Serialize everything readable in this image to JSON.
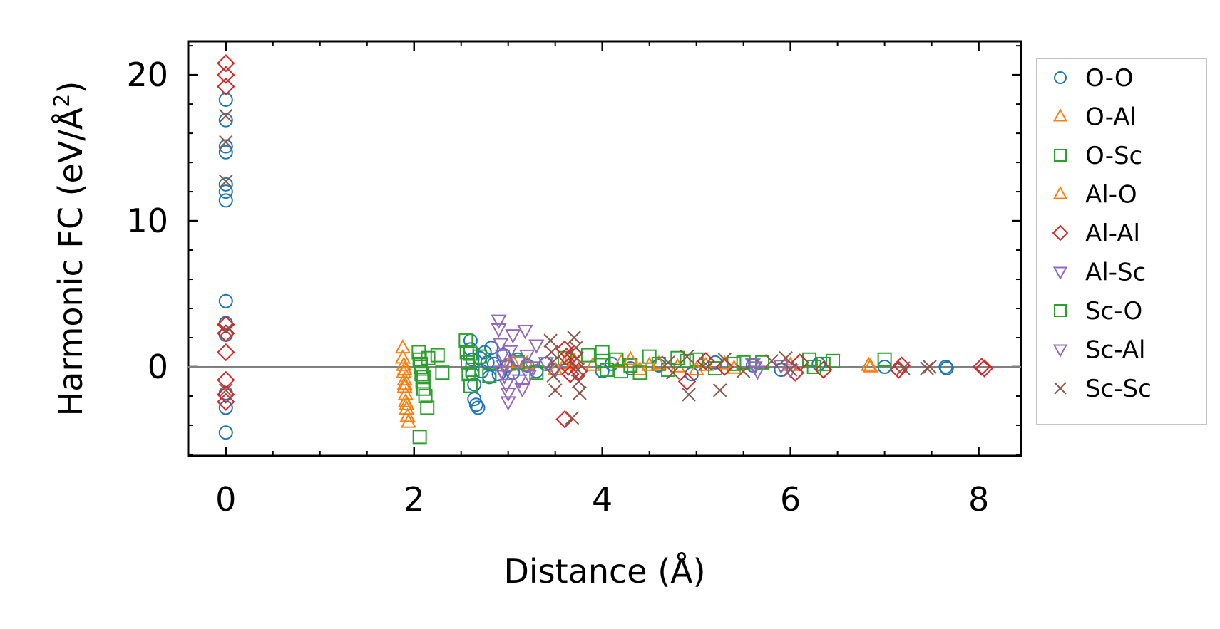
{
  "chart_data": {
    "type": "scatter",
    "title": "",
    "xlabel": "Distance (Å)",
    "ylabel_main": "Harmonic FC (eV/Å",
    "ylabel_sup": "2",
    "ylabel_close": ")",
    "xlim": [
      -0.4,
      8.45
    ],
    "ylim": [
      -6.1,
      22.3
    ],
    "xticks": [
      0,
      2,
      4,
      6,
      8
    ],
    "xtick_labels": [
      "0",
      "2",
      "4",
      "6",
      "8"
    ],
    "yticks": [
      0,
      10,
      20
    ],
    "ytick_labels": [
      "0",
      "10",
      "20"
    ],
    "x_minor_step": 0.5,
    "y_minor_step": 2,
    "reference_line_y": 0,
    "grid": false,
    "legend_position": "right-outside",
    "series": [
      {
        "name": "O-O",
        "marker": "circle",
        "color": "#1f77b4",
        "points": [
          [
            0,
            18.3
          ],
          [
            0,
            16.9
          ],
          [
            0,
            15.1
          ],
          [
            0,
            14.7
          ],
          [
            0,
            12.5
          ],
          [
            0,
            12.0
          ],
          [
            0,
            11.4
          ],
          [
            0,
            4.5
          ],
          [
            0,
            3.0
          ],
          [
            0,
            2.2
          ],
          [
            0,
            -1.8
          ],
          [
            0,
            -2.8
          ],
          [
            0,
            -4.5
          ],
          [
            2.6,
            1.8
          ],
          [
            2.6,
            1.2
          ],
          [
            2.62,
            0.5
          ],
          [
            2.62,
            -0.5
          ],
          [
            2.64,
            -1.2
          ],
          [
            2.64,
            -2.2
          ],
          [
            2.66,
            -2.6
          ],
          [
            2.68,
            -2.8
          ],
          [
            2.7,
            0.6
          ],
          [
            2.72,
            -0.3
          ],
          [
            2.75,
            1.0
          ],
          [
            2.78,
            0.3
          ],
          [
            2.8,
            -0.7
          ],
          [
            2.82,
            1.3
          ],
          [
            2.85,
            0.2
          ],
          [
            2.9,
            -0.5
          ],
          [
            2.95,
            0.8
          ],
          [
            3.0,
            0.1
          ],
          [
            3.05,
            -0.4
          ],
          [
            3.1,
            0.5
          ],
          [
            3.2,
            0.1
          ],
          [
            3.3,
            -0.3
          ],
          [
            3.4,
            0.2
          ],
          [
            4.0,
            -0.3
          ],
          [
            4.1,
            0.2
          ],
          [
            4.3,
            -0.1
          ],
          [
            4.6,
            0.1
          ],
          [
            4.95,
            -0.5
          ],
          [
            5.2,
            0.3
          ],
          [
            5.6,
            0.1
          ],
          [
            5.9,
            -0.2
          ],
          [
            6.3,
            0.2
          ],
          [
            7.0,
            0.0
          ],
          [
            7.65,
            0.0
          ],
          [
            7.66,
            -0.1
          ]
        ]
      },
      {
        "name": "O-Al",
        "marker": "triangle",
        "color": "#ff7f0e",
        "points": [
          [
            1.88,
            1.3
          ],
          [
            1.88,
            0.6
          ],
          [
            1.89,
            0.1
          ],
          [
            1.89,
            -0.4
          ],
          [
            1.9,
            -0.9
          ],
          [
            1.9,
            -1.4
          ],
          [
            1.91,
            -1.9
          ],
          [
            1.91,
            -2.4
          ],
          [
            1.92,
            -2.9
          ],
          [
            1.93,
            -3.4
          ],
          [
            1.94,
            -3.8
          ],
          [
            3.0,
            0.1
          ],
          [
            3.2,
            0.2
          ],
          [
            3.5,
            -0.2
          ],
          [
            3.7,
            0.4
          ],
          [
            3.9,
            0.1
          ],
          [
            4.2,
            0.3
          ],
          [
            4.4,
            -0.2
          ],
          [
            4.6,
            0.2
          ],
          [
            4.8,
            0.0
          ],
          [
            5.1,
            0.1
          ],
          [
            5.4,
            -0.1
          ],
          [
            6.0,
            0.1
          ],
          [
            6.85,
            0.0
          ]
        ]
      },
      {
        "name": "O-Sc",
        "marker": "square",
        "color": "#2ca02c",
        "points": [
          [
            2.05,
            1.0
          ],
          [
            2.06,
            0.5
          ],
          [
            2.07,
            0.0
          ],
          [
            2.08,
            -0.5
          ],
          [
            2.09,
            -1.0
          ],
          [
            2.1,
            -1.5
          ],
          [
            2.12,
            -2.0
          ],
          [
            2.14,
            -2.8
          ],
          [
            2.06,
            -4.8
          ],
          [
            2.15,
            0.6
          ],
          [
            2.25,
            0.8
          ],
          [
            2.3,
            -0.4
          ],
          [
            2.55,
            1.8
          ],
          [
            2.56,
            1.0
          ],
          [
            2.57,
            0.3
          ],
          [
            2.58,
            -0.5
          ],
          [
            2.6,
            -1.3
          ],
          [
            2.7,
            0.7
          ],
          [
            2.8,
            -0.6
          ],
          [
            3.1,
            0.3
          ],
          [
            3.3,
            -0.4
          ],
          [
            3.6,
            0.6
          ],
          [
            3.85,
            0.8
          ],
          [
            4.0,
            1.0
          ],
          [
            4.05,
            -0.2
          ],
          [
            4.15,
            0.5
          ],
          [
            4.3,
            0.1
          ],
          [
            4.4,
            -0.4
          ],
          [
            4.5,
            0.7
          ],
          [
            4.6,
            0.2
          ],
          [
            4.7,
            -0.2
          ],
          [
            4.9,
            0.4
          ],
          [
            5.0,
            0.5
          ],
          [
            5.2,
            -0.1
          ],
          [
            5.4,
            0.2
          ],
          [
            5.7,
            0.3
          ],
          [
            6.2,
            0.5
          ],
          [
            6.35,
            0.2
          ],
          [
            6.45,
            0.4
          ],
          [
            7.0,
            0.5
          ]
        ]
      },
      {
        "name": "Al-O",
        "marker": "triangle",
        "color": "#ff7f0e",
        "points": [
          [
            1.9,
            -0.2
          ],
          [
            1.9,
            -1.2
          ],
          [
            1.92,
            -2.6
          ],
          [
            3.05,
            0.3
          ],
          [
            3.6,
            0.2
          ],
          [
            4.3,
            0.5
          ],
          [
            4.5,
            0.1
          ],
          [
            5.0,
            -0.2
          ],
          [
            5.3,
            0.2
          ],
          [
            6.83,
            0.1
          ]
        ]
      },
      {
        "name": "Al-Al",
        "marker": "diamond",
        "color": "#d62728",
        "points": [
          [
            0,
            20.8
          ],
          [
            0,
            20.0
          ],
          [
            0,
            19.2
          ],
          [
            0,
            2.9
          ],
          [
            0,
            2.3
          ],
          [
            0,
            1.0
          ],
          [
            0,
            -0.9
          ],
          [
            0,
            -1.9
          ],
          [
            0,
            -2.4
          ],
          [
            3.6,
            1.2
          ],
          [
            3.62,
            0.7
          ],
          [
            3.64,
            0.0
          ],
          [
            3.66,
            -0.5
          ],
          [
            3.6,
            -3.6
          ],
          [
            3.7,
            0.9
          ],
          [
            3.75,
            -0.3
          ],
          [
            4.9,
            -1.0
          ],
          [
            5.1,
            0.4
          ],
          [
            5.3,
            0.0
          ],
          [
            6.05,
            -0.4
          ],
          [
            6.1,
            0.3
          ],
          [
            6.35,
            -0.2
          ],
          [
            7.15,
            -0.2
          ],
          [
            7.18,
            0.1
          ],
          [
            8.03,
            0.0
          ],
          [
            8.06,
            -0.1
          ]
        ]
      },
      {
        "name": "Al-Sc",
        "marker": "triangle-down",
        "color": "#9467bd",
        "points": [
          [
            2.9,
            3.2
          ],
          [
            2.9,
            2.6
          ],
          [
            2.92,
            1.6
          ],
          [
            2.94,
            0.8
          ],
          [
            2.95,
            0.1
          ],
          [
            2.96,
            -0.6
          ],
          [
            2.98,
            -1.2
          ],
          [
            3.0,
            -1.8
          ],
          [
            3.0,
            -2.4
          ],
          [
            3.05,
            2.2
          ],
          [
            3.1,
            0.3
          ],
          [
            3.15,
            -1.5
          ],
          [
            3.18,
            2.5
          ],
          [
            3.2,
            0.8
          ],
          [
            3.22,
            -0.6
          ],
          [
            3.3,
            1.5
          ],
          [
            3.4,
            0.3
          ],
          [
            3.5,
            -0.2
          ],
          [
            5.6,
            0.2
          ],
          [
            5.65,
            -0.3
          ],
          [
            5.9,
            0.1
          ],
          [
            6.0,
            -0.2
          ]
        ]
      },
      {
        "name": "Sc-O",
        "marker": "square",
        "color": "#2ca02c",
        "points": [
          [
            2.07,
            0.2
          ],
          [
            2.1,
            -0.7
          ],
          [
            2.6,
            0.9
          ],
          [
            2.62,
            -0.2
          ],
          [
            4.0,
            0.4
          ],
          [
            4.2,
            -0.3
          ],
          [
            4.8,
            0.6
          ],
          [
            5.5,
            0.3
          ],
          [
            6.25,
            0.0
          ]
        ]
      },
      {
        "name": "Sc-Al",
        "marker": "triangle-down",
        "color": "#9467bd",
        "points": [
          [
            2.93,
            -0.3
          ],
          [
            3.02,
            1.1
          ],
          [
            3.12,
            -0.9
          ],
          [
            3.25,
            0.0
          ],
          [
            5.62,
            0.0
          ]
        ]
      },
      {
        "name": "Sc-Sc",
        "marker": "x",
        "color": "#8c564b",
        "points": [
          [
            0,
            17.2
          ],
          [
            0,
            15.4
          ],
          [
            0,
            12.7
          ],
          [
            0,
            2.5
          ],
          [
            0,
            -1.6
          ],
          [
            3.45,
            1.8
          ],
          [
            3.46,
            1.0
          ],
          [
            3.47,
            0.3
          ],
          [
            3.48,
            -0.6
          ],
          [
            3.5,
            -1.6
          ],
          [
            3.7,
            2.0
          ],
          [
            3.72,
            1.3
          ],
          [
            3.73,
            0.6
          ],
          [
            3.74,
            -0.2
          ],
          [
            3.75,
            -1.0
          ],
          [
            3.76,
            -1.8
          ],
          [
            3.68,
            -3.5
          ],
          [
            4.7,
            0.3
          ],
          [
            4.75,
            -0.4
          ],
          [
            4.9,
            0.7
          ],
          [
            4.92,
            -1.9
          ],
          [
            5.1,
            0.2
          ],
          [
            5.25,
            -1.6
          ],
          [
            5.3,
            0.5
          ],
          [
            5.5,
            -0.3
          ],
          [
            5.8,
            0.4
          ],
          [
            5.95,
            0.6
          ],
          [
            6.0,
            -0.2
          ],
          [
            7.2,
            -0.1
          ],
          [
            7.45,
            -0.1
          ],
          [
            7.48,
            0.0
          ]
        ]
      }
    ]
  }
}
